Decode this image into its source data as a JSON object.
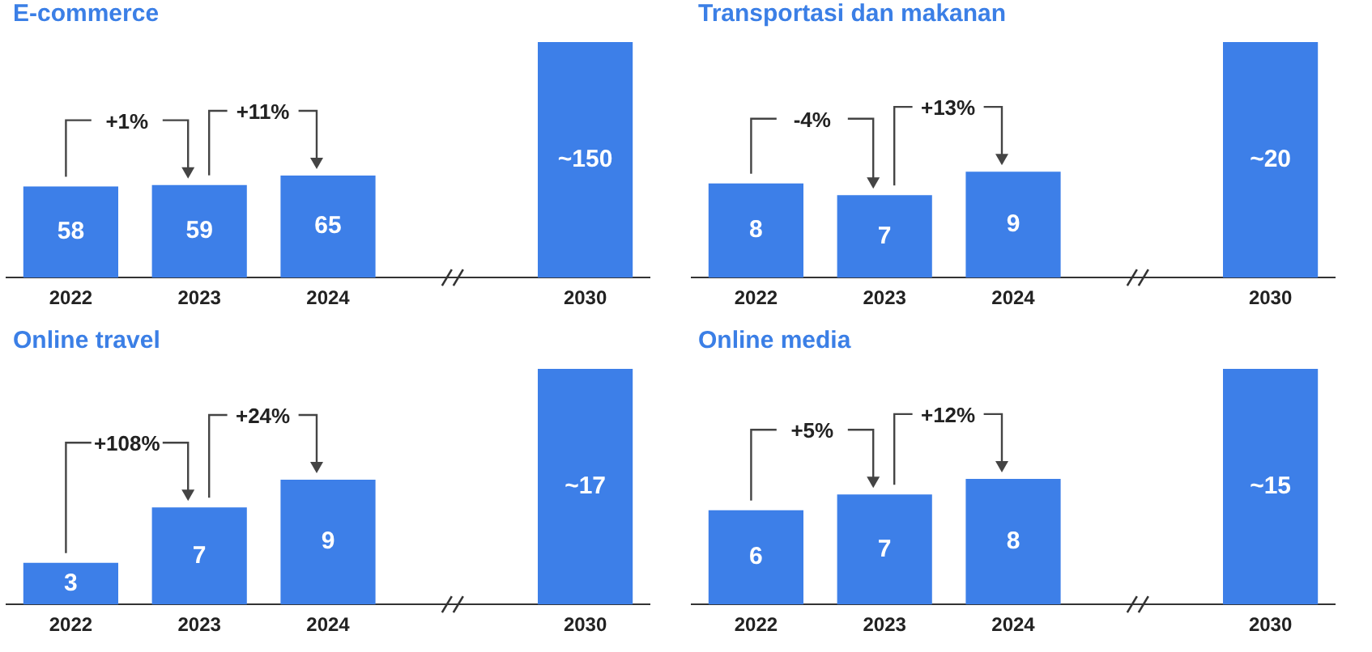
{
  "chart_data": [
    {
      "type": "bar",
      "title": "E-commerce",
      "categories": [
        "2022",
        "2023",
        "2024",
        null,
        "2030"
      ],
      "values": [
        58,
        59,
        65,
        null,
        150
      ],
      "value_labels": [
        "58",
        "59",
        "65",
        null,
        "~150"
      ],
      "color": "#3d7fe8",
      "annotations": [
        "+1%",
        "+11%"
      ],
      "tick_labels": "x"
    },
    {
      "type": "bar",
      "title": "Transportasi dan makanan",
      "categories": [
        "2022",
        "2023",
        "2024",
        null,
        "2030"
      ],
      "values": [
        8,
        7,
        9,
        null,
        20
      ],
      "value_labels": [
        "8",
        "7",
        "9",
        null,
        "~20"
      ],
      "color": "#3d7fe8",
      "annotations": [
        "-4%",
        "+13%"
      ],
      "tick_labels": "x"
    },
    {
      "type": "bar",
      "title": "Online travel",
      "categories": [
        "2022",
        "2023",
        "2024",
        null,
        "2030"
      ],
      "values": [
        3,
        7,
        9,
        null,
        17
      ],
      "value_labels": [
        "3",
        "7",
        "9",
        null,
        "~17"
      ],
      "color": "#3d7fe8",
      "annotations": [
        "+108%",
        "+24%"
      ],
      "tick_labels": "x"
    },
    {
      "type": "bar",
      "title": "Online media",
      "categories": [
        "2022",
        "2023",
        "2024",
        null,
        "2030"
      ],
      "values": [
        6,
        7,
        8,
        null,
        15
      ],
      "value_labels": [
        "6",
        "7",
        "8",
        null,
        "~15"
      ],
      "color": "#3d7fe8",
      "annotations": [
        "+5%",
        "+12%"
      ],
      "tick_labels": "x"
    }
  ]
}
